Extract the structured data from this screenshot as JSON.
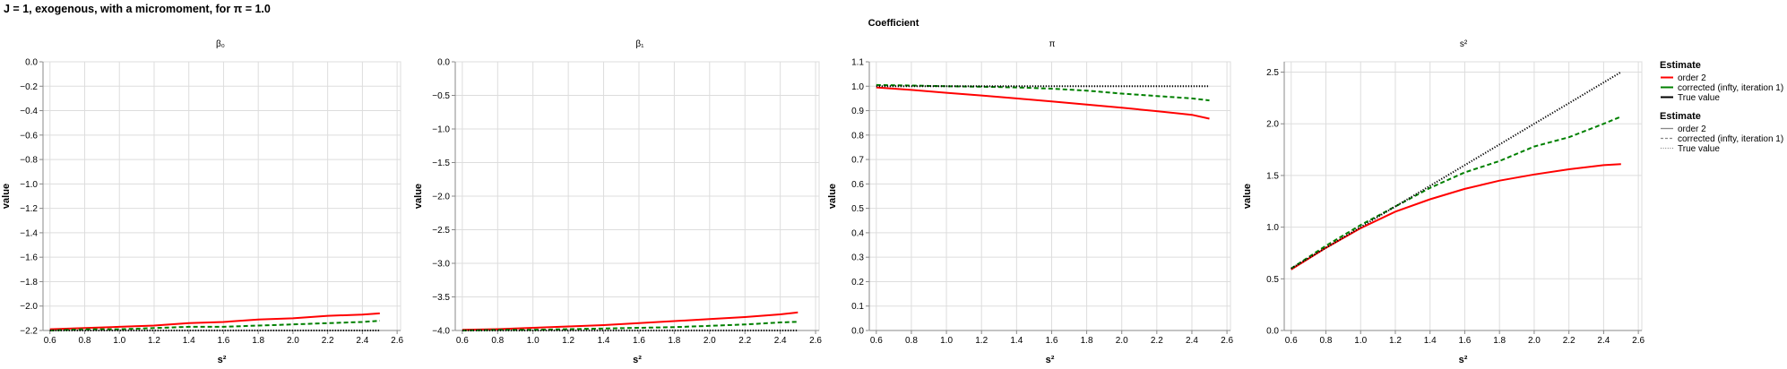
{
  "title": "J = 1, exogenous, with a micromoment,  for π = 1.0",
  "facet_header": "Coefficient",
  "colors": {
    "order2": "#ff0000",
    "corrected": "#008000",
    "true_value": "#000000",
    "grid": "#dddddd",
    "axis": "#888888"
  },
  "legends": [
    {
      "title": "Estimate",
      "entries": [
        {
          "label": "order 2",
          "color": "#ff0000",
          "dash": "solid"
        },
        {
          "label": "corrected (infty, iteration 1)",
          "color": "#008000",
          "dash": "solid"
        },
        {
          "label": "True value",
          "color": "#000000",
          "dash": "solid"
        }
      ]
    },
    {
      "title": "Estimate",
      "entries": [
        {
          "label": "order 2",
          "color": "#888888",
          "dash": "solid"
        },
        {
          "label": "corrected (infty, iteration 1)",
          "color": "#888888",
          "dash": "dashed"
        },
        {
          "label": "True value",
          "color": "#888888",
          "dash": "dotted"
        }
      ]
    }
  ],
  "chart_data": [
    {
      "type": "line",
      "facet": "β₀",
      "xlabel": "s²",
      "ylabel": "value",
      "xlim": [
        0.56,
        2.62
      ],
      "ylim": [
        -2.2,
        0.0
      ],
      "x_ticks": [
        0.6,
        0.8,
        1.0,
        1.2,
        1.4,
        1.6,
        1.8,
        2.0,
        2.2,
        2.4,
        2.6
      ],
      "y_ticks": [
        0.0,
        -0.2,
        -0.4,
        -0.6,
        -0.8,
        -1.0,
        -1.2,
        -1.4,
        -1.6,
        -1.8,
        -2.0,
        -2.2
      ],
      "x_tick_labels": [
        "0.6",
        "0.8",
        "1.0",
        "1.2",
        "1.4",
        "1.6",
        "1.8",
        "2.0",
        "2.2",
        "2.4",
        "2.6"
      ],
      "y_tick_labels": [
        "0.0",
        "−0.2",
        "−0.4",
        "−0.6",
        "−0.8",
        "−1.0",
        "−1.2",
        "−1.4",
        "−1.6",
        "−1.8",
        "−2.0",
        "−2.2"
      ],
      "x": [
        0.6,
        0.8,
        1.0,
        1.2,
        1.4,
        1.6,
        1.8,
        2.0,
        2.2,
        2.4,
        2.5
      ],
      "series": [
        {
          "name": "order 2",
          "color": "#ff0000",
          "dash": "solid",
          "values": [
            -2.19,
            -2.18,
            -2.17,
            -2.16,
            -2.14,
            -2.13,
            -2.11,
            -2.1,
            -2.08,
            -2.07,
            -2.06
          ]
        },
        {
          "name": "corrected (infty, iteration 1)",
          "color": "#008000",
          "dash": "dashed",
          "values": [
            -2.2,
            -2.19,
            -2.19,
            -2.18,
            -2.17,
            -2.17,
            -2.16,
            -2.15,
            -2.14,
            -2.13,
            -2.12
          ]
        },
        {
          "name": "True value",
          "color": "#000000",
          "dash": "dotted",
          "values": [
            -2.2,
            -2.2,
            -2.2,
            -2.2,
            -2.2,
            -2.2,
            -2.2,
            -2.2,
            -2.2,
            -2.2,
            -2.2
          ]
        }
      ]
    },
    {
      "type": "line",
      "facet": "β₁",
      "xlabel": "s²",
      "ylabel": "value",
      "xlim": [
        0.56,
        2.62
      ],
      "ylim": [
        -4.0,
        0.0
      ],
      "x_ticks": [
        0.6,
        0.8,
        1.0,
        1.2,
        1.4,
        1.6,
        1.8,
        2.0,
        2.2,
        2.4,
        2.6
      ],
      "y_ticks": [
        0.0,
        -0.5,
        -1.0,
        -1.5,
        -2.0,
        -2.5,
        -3.0,
        -3.5,
        -4.0
      ],
      "x_tick_labels": [
        "0.6",
        "0.8",
        "1.0",
        "1.2",
        "1.4",
        "1.6",
        "1.8",
        "2.0",
        "2.2",
        "2.4",
        "2.6"
      ],
      "y_tick_labels": [
        "0.0",
        "−0.5",
        "−1.0",
        "−1.5",
        "−2.0",
        "−2.5",
        "−3.0",
        "−3.5",
        "−4.0"
      ],
      "x": [
        0.6,
        0.8,
        1.0,
        1.2,
        1.4,
        1.6,
        1.8,
        2.0,
        2.2,
        2.4,
        2.5
      ],
      "series": [
        {
          "name": "order 2",
          "color": "#ff0000",
          "dash": "solid",
          "values": [
            -3.99,
            -3.98,
            -3.96,
            -3.94,
            -3.92,
            -3.89,
            -3.86,
            -3.83,
            -3.8,
            -3.76,
            -3.73
          ]
        },
        {
          "name": "corrected (infty, iteration 1)",
          "color": "#008000",
          "dash": "dashed",
          "values": [
            -4.0,
            -3.99,
            -3.99,
            -3.98,
            -3.97,
            -3.96,
            -3.95,
            -3.93,
            -3.91,
            -3.88,
            -3.87
          ]
        },
        {
          "name": "True value",
          "color": "#000000",
          "dash": "dotted",
          "values": [
            -4.0,
            -4.0,
            -4.0,
            -4.0,
            -4.0,
            -4.0,
            -4.0,
            -4.0,
            -4.0,
            -4.0,
            -4.0
          ]
        }
      ]
    },
    {
      "type": "line",
      "facet": "π",
      "xlabel": "s²",
      "ylabel": "value",
      "xlim": [
        0.56,
        2.62
      ],
      "ylim": [
        0.0,
        1.1
      ],
      "x_ticks": [
        0.6,
        0.8,
        1.0,
        1.2,
        1.4,
        1.6,
        1.8,
        2.0,
        2.2,
        2.4,
        2.6
      ],
      "y_ticks": [
        0.0,
        0.1,
        0.2,
        0.3,
        0.4,
        0.5,
        0.6,
        0.7,
        0.8,
        0.9,
        1.0,
        1.1
      ],
      "x_tick_labels": [
        "0.6",
        "0.8",
        "1.0",
        "1.2",
        "1.4",
        "1.6",
        "1.8",
        "2.0",
        "2.2",
        "2.4",
        "2.6"
      ],
      "y_tick_labels": [
        "0.0",
        "0.1",
        "0.2",
        "0.3",
        "0.4",
        "0.5",
        "0.6",
        "0.7",
        "0.8",
        "0.9",
        "1.0",
        "1.1"
      ],
      "x": [
        0.6,
        0.8,
        1.0,
        1.2,
        1.4,
        1.6,
        1.8,
        2.0,
        2.2,
        2.4,
        2.5
      ],
      "series": [
        {
          "name": "order 2",
          "color": "#ff0000",
          "dash": "solid",
          "values": [
            0.995,
            0.985,
            0.973,
            0.962,
            0.95,
            0.938,
            0.925,
            0.912,
            0.898,
            0.883,
            0.867
          ]
        },
        {
          "name": "corrected (infty, iteration 1)",
          "color": "#008000",
          "dash": "dashed",
          "values": [
            1.005,
            1.003,
            1.0,
            0.998,
            0.995,
            0.99,
            0.982,
            0.97,
            0.96,
            0.95,
            0.942
          ]
        },
        {
          "name": "True value",
          "color": "#000000",
          "dash": "dotted",
          "values": [
            1.0,
            1.0,
            1.0,
            1.0,
            1.0,
            1.0,
            1.0,
            1.0,
            1.0,
            1.0,
            1.0
          ]
        }
      ]
    },
    {
      "type": "line",
      "facet": "s²",
      "xlabel": "s²",
      "ylabel": "value",
      "xlim": [
        0.56,
        2.62
      ],
      "ylim": [
        0.0,
        2.6
      ],
      "x_ticks": [
        0.6,
        0.8,
        1.0,
        1.2,
        1.4,
        1.6,
        1.8,
        2.0,
        2.2,
        2.4,
        2.6
      ],
      "y_ticks": [
        0.0,
        0.5,
        1.0,
        1.5,
        2.0,
        2.5
      ],
      "x_tick_labels": [
        "0.6",
        "0.8",
        "1.0",
        "1.2",
        "1.4",
        "1.6",
        "1.8",
        "2.0",
        "2.2",
        "2.4",
        "2.6"
      ],
      "y_tick_labels": [
        "0.0",
        "0.5",
        "1.0",
        "1.5",
        "2.0",
        "2.5"
      ],
      "x": [
        0.6,
        0.8,
        1.0,
        1.2,
        1.4,
        1.6,
        1.8,
        2.0,
        2.2,
        2.4,
        2.5
      ],
      "series": [
        {
          "name": "order 2",
          "color": "#ff0000",
          "dash": "solid",
          "values": [
            0.59,
            0.8,
            0.99,
            1.15,
            1.27,
            1.37,
            1.45,
            1.51,
            1.56,
            1.6,
            1.61
          ]
        },
        {
          "name": "corrected (infty, iteration 1)",
          "color": "#008000",
          "dash": "dashed",
          "values": [
            0.6,
            0.82,
            1.02,
            1.2,
            1.38,
            1.53,
            1.64,
            1.78,
            1.87,
            2.0,
            2.07
          ]
        },
        {
          "name": "True value",
          "color": "#000000",
          "dash": "dotted",
          "values": [
            0.6,
            0.8,
            1.0,
            1.2,
            1.4,
            1.6,
            1.8,
            2.0,
            2.2,
            2.4,
            2.5
          ]
        }
      ]
    }
  ]
}
